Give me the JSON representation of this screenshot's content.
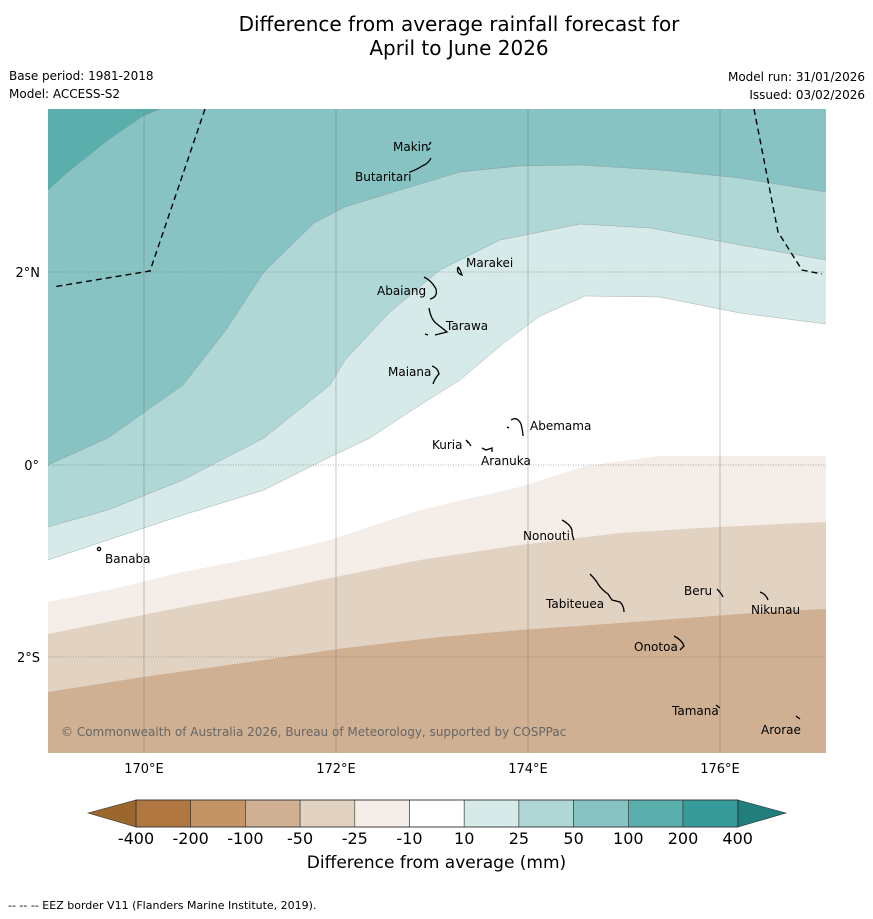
{
  "title": {
    "line1": "Difference from average rainfall forecast for",
    "line2": "April to June 2026"
  },
  "meta": {
    "base_period": "Base period: 1981-2018",
    "model": "Model: ACCESS-S2",
    "model_run": "Model run: 31/01/2026",
    "issued": "Issued: 03/02/2026"
  },
  "map": {
    "lon_ticks": [
      "170°E",
      "172°E",
      "174°E",
      "176°E"
    ],
    "lat_ticks": [
      "2°N",
      "0°",
      "2°S"
    ],
    "copyright": "© Commonwealth of Australia 2026, Bureau of Meteorology, supported by COSPPac",
    "places": [
      "Makin",
      "Butaritari",
      "Marakei",
      "Abaiang",
      "Tarawa",
      "Maiana",
      "Abemama",
      "Kuria",
      "Aranuka",
      "Banaba",
      "Nonouti",
      "Tabiteuea",
      "Beru",
      "Nikunau",
      "Onotoa",
      "Tamana",
      "Arorae"
    ]
  },
  "colorbar": {
    "ticks": [
      "-400",
      "-200",
      "-100",
      "-50",
      "-25",
      "-10",
      "10",
      "25",
      "50",
      "100",
      "200",
      "400"
    ],
    "colors": {
      "below_400": "#9c672c",
      "m400_m200": "#b07840",
      "m200_m100": "#c29466",
      "m100_m50": "#d0b092",
      "m50_m25": "#e2d2c2",
      "m25_m10": "#f4ede8",
      "m10_10": "#ffffff",
      "10_25": "#d5eae9",
      "25_50": "#aed7d6",
      "50_100": "#86c3c2",
      "100_200": "#5aaeac",
      "200_400": "#369b99",
      "above_400": "#207f7c"
    },
    "label": "Difference from average (mm)"
  },
  "footnote": "--  --  -- EEZ border V11 (Flanders Marine Institute, 2019)."
}
